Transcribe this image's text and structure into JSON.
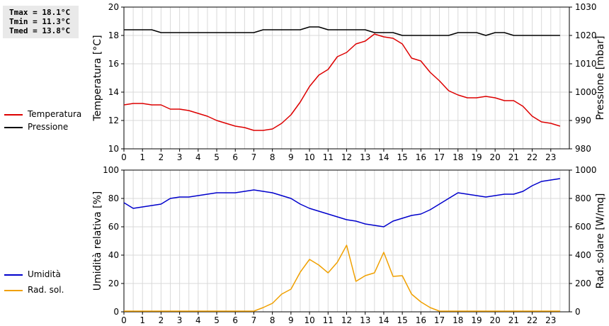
{
  "stats": {
    "tmax": "Tmax = 18.1°C",
    "tmin": "Tmin = 11.3°C",
    "tmed": "Tmed = 13.8°C"
  },
  "chart_data": [
    {
      "type": "line",
      "x": [
        0,
        0.5,
        1,
        1.5,
        2,
        2.5,
        3,
        3.5,
        4,
        4.5,
        5,
        5.5,
        6,
        6.5,
        7,
        7.5,
        8,
        8.5,
        9,
        9.5,
        10,
        10.5,
        11,
        11.5,
        12,
        12.5,
        13,
        13.5,
        14,
        14.5,
        15,
        15.5,
        16,
        16.5,
        17,
        17.5,
        18,
        18.5,
        19,
        19.5,
        20,
        20.5,
        21,
        21.5,
        22,
        22.5,
        23,
        23.5
      ],
      "xlim": [
        0,
        24
      ],
      "xticks": [
        0,
        1,
        2,
        3,
        4,
        5,
        6,
        7,
        8,
        9,
        10,
        11,
        12,
        13,
        14,
        15,
        16,
        17,
        18,
        19,
        20,
        21,
        22,
        23
      ],
      "ylabel_left": "Temperatura [°C]",
      "ylim_left": [
        10,
        20
      ],
      "yticks_left": [
        10,
        12,
        14,
        16,
        18,
        20
      ],
      "ylabel_right": "Pressione [mbar]",
      "ylim_right": [
        980,
        1030
      ],
      "yticks_right": [
        980,
        990,
        1000,
        1010,
        1020,
        1030
      ],
      "grid": true,
      "legend_position": "left, outside plot",
      "series": [
        {
          "name": "Temperatura",
          "axis": "left",
          "color": "#dd0000",
          "values": [
            13.1,
            13.2,
            13.2,
            13.1,
            13.1,
            12.8,
            12.8,
            12.7,
            12.5,
            12.3,
            12.0,
            11.8,
            11.6,
            11.5,
            11.3,
            11.3,
            11.4,
            11.8,
            12.4,
            13.3,
            14.4,
            15.2,
            15.6,
            16.5,
            16.8,
            17.4,
            17.6,
            18.1,
            17.9,
            17.8,
            17.4,
            16.4,
            16.2,
            15.4,
            14.8,
            14.1,
            13.8,
            13.6,
            13.6,
            13.7,
            13.6,
            13.4,
            13.4,
            13.0,
            12.3,
            11.9,
            11.8,
            11.6
          ]
        },
        {
          "name": "Pressione",
          "axis": "right",
          "color": "#000000",
          "values": [
            1022,
            1022,
            1022,
            1022,
            1021,
            1021,
            1021,
            1021,
            1021,
            1021,
            1021,
            1021,
            1021,
            1021,
            1021,
            1022,
            1022,
            1022,
            1022,
            1022,
            1023,
            1023,
            1022,
            1022,
            1022,
            1022,
            1022,
            1021,
            1021,
            1021,
            1020,
            1020,
            1020,
            1020,
            1020,
            1020,
            1021,
            1021,
            1021,
            1020,
            1021,
            1021,
            1020,
            1020,
            1020,
            1020,
            1020,
            1020
          ]
        }
      ]
    },
    {
      "type": "line",
      "x": [
        0,
        0.5,
        1,
        1.5,
        2,
        2.5,
        3,
        3.5,
        4,
        4.5,
        5,
        5.5,
        6,
        6.5,
        7,
        7.5,
        8,
        8.5,
        9,
        9.5,
        10,
        10.5,
        11,
        11.5,
        12,
        12.5,
        13,
        13.5,
        14,
        14.5,
        15,
        15.5,
        16,
        16.5,
        17,
        17.5,
        18,
        18.5,
        19,
        19.5,
        20,
        20.5,
        21,
        21.5,
        22,
        22.5,
        23,
        23.5
      ],
      "xlim": [
        0,
        24
      ],
      "xticks": [
        0,
        1,
        2,
        3,
        4,
        5,
        6,
        7,
        8,
        9,
        10,
        11,
        12,
        13,
        14,
        15,
        16,
        17,
        18,
        19,
        20,
        21,
        22,
        23
      ],
      "ylabel_left": "Umidità relativa [%]",
      "ylim_left": [
        0,
        100
      ],
      "yticks_left": [
        0,
        20,
        40,
        60,
        80,
        100
      ],
      "ylabel_right": "Rad. solare [W/mq]",
      "ylim_right": [
        0,
        1000
      ],
      "yticks_right": [
        0,
        200,
        400,
        600,
        800,
        1000
      ],
      "grid": true,
      "legend_position": "left, outside plot",
      "series": [
        {
          "name": "Umidità",
          "axis": "left",
          "color": "#0000cc",
          "values": [
            77,
            73,
            74,
            75,
            76,
            80,
            81,
            81,
            82,
            83,
            84,
            84,
            84,
            85,
            86,
            85,
            84,
            82,
            80,
            76,
            73,
            71,
            69,
            67,
            65,
            64,
            62,
            61,
            60,
            64,
            66,
            68,
            69,
            72,
            76,
            80,
            84,
            83,
            82,
            81,
            82,
            83,
            83,
            85,
            89,
            92,
            93,
            94
          ]
        },
        {
          "name": "Rad. sol.",
          "axis": "right",
          "color": "#f0a000",
          "values": [
            5,
            5,
            5,
            5,
            5,
            5,
            5,
            5,
            5,
            5,
            5,
            5,
            5,
            5,
            5,
            30,
            60,
            125,
            160,
            280,
            370,
            330,
            275,
            350,
            470,
            215,
            255,
            275,
            420,
            250,
            255,
            125,
            70,
            30,
            5,
            5,
            5,
            5,
            5,
            5,
            5,
            5,
            5,
            5,
            5,
            5,
            5,
            5
          ]
        }
      ]
    }
  ]
}
